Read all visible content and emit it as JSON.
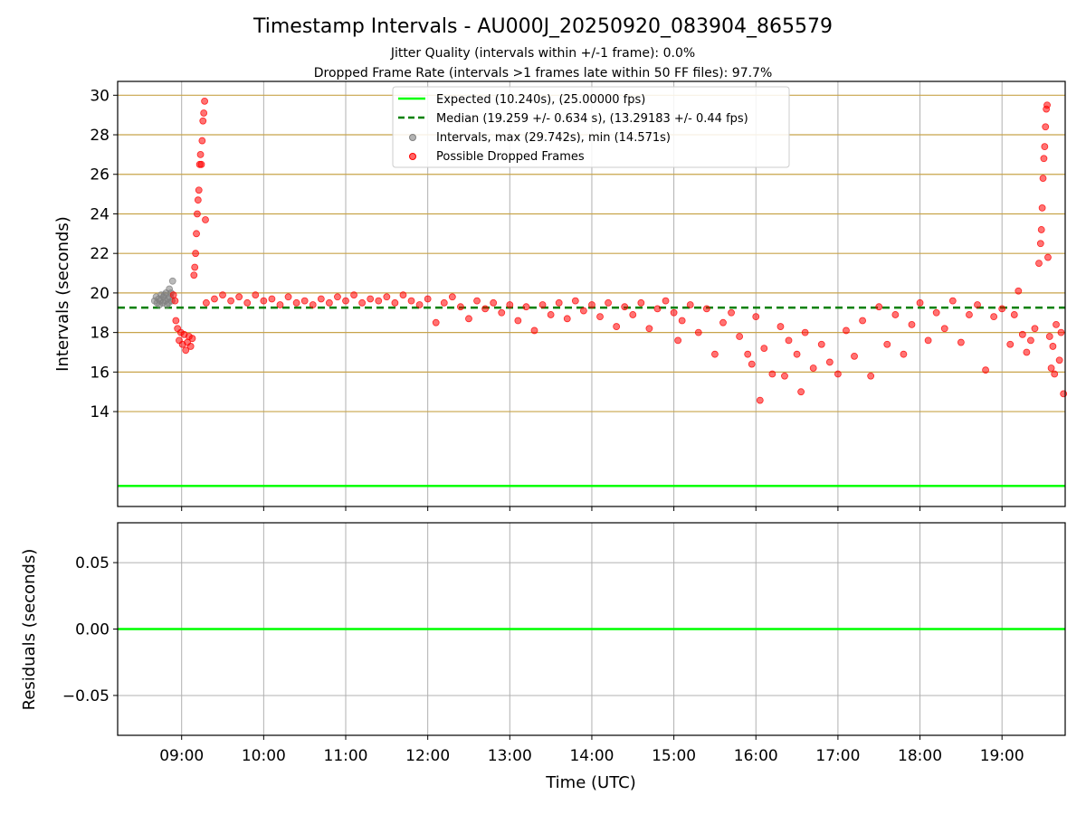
{
  "chart_data": {
    "type": "scatter",
    "title": "Timestamp Intervals - AU000J_20250920_083904_865579",
    "subtitles": [
      "Jitter Quality (intervals within +/-1 frame): 0.0%",
      "Dropped Frame Rate (intervals >1 frames late within 50 FF files): 97.7%"
    ],
    "colors": {
      "expected": "#00ff00",
      "median": "#008000",
      "intervals": "#808080",
      "dropped": "#ff0000",
      "gold_grid": "#c8a44a",
      "gray_grid": "#b0b0b0"
    },
    "x_axis": {
      "label": "Time (UTC)",
      "range_hours": [
        8.22,
        19.77
      ],
      "ticks": [
        {
          "value": 9,
          "label": "09:00"
        },
        {
          "value": 10,
          "label": "10:00"
        },
        {
          "value": 11,
          "label": "11:00"
        },
        {
          "value": 12,
          "label": "12:00"
        },
        {
          "value": 13,
          "label": "13:00"
        },
        {
          "value": 14,
          "label": "14:00"
        },
        {
          "value": 15,
          "label": "15:00"
        },
        {
          "value": 16,
          "label": "16:00"
        },
        {
          "value": 17,
          "label": "17:00"
        },
        {
          "value": 18,
          "label": "18:00"
        },
        {
          "value": 19,
          "label": "19:00"
        }
      ]
    },
    "top_panel": {
      "ylabel": "Intervals (seconds)",
      "ylim": [
        9.2,
        30.7
      ],
      "yticks": [
        {
          "value": 14,
          "label": "14"
        },
        {
          "value": 16,
          "label": "16"
        },
        {
          "value": 18,
          "label": "18"
        },
        {
          "value": 20,
          "label": "20"
        },
        {
          "value": 22,
          "label": "22"
        },
        {
          "value": 24,
          "label": "24"
        },
        {
          "value": 26,
          "label": "26"
        },
        {
          "value": 28,
          "label": "28"
        },
        {
          "value": 30,
          "label": "30"
        }
      ],
      "expected_value": 10.24,
      "median_value": 19.259,
      "legend": [
        {
          "label": "Expected (10.240s), (25.00000 fps)",
          "kind": "line",
          "color": "#00ff00"
        },
        {
          "label": "Median (19.259 +/- 0.634 s), (13.29183 +/- 0.44 fps)",
          "kind": "dashed",
          "color": "#008000"
        },
        {
          "label": "Intervals, max (29.742s), min (14.571s)",
          "kind": "marker",
          "color": "#808080"
        },
        {
          "label": "Possible Dropped Frames",
          "kind": "marker",
          "color": "#ff0000"
        }
      ],
      "interval_points_gray": [
        {
          "x": 8.67,
          "y": 19.6
        },
        {
          "x": 8.69,
          "y": 19.8
        },
        {
          "x": 8.7,
          "y": 19.5
        },
        {
          "x": 8.72,
          "y": 19.7
        },
        {
          "x": 8.74,
          "y": 19.6
        },
        {
          "x": 8.75,
          "y": 19.9
        },
        {
          "x": 8.77,
          "y": 19.5
        },
        {
          "x": 8.78,
          "y": 19.8
        },
        {
          "x": 8.8,
          "y": 19.6
        },
        {
          "x": 8.81,
          "y": 20.0
        },
        {
          "x": 8.83,
          "y": 19.7
        },
        {
          "x": 8.84,
          "y": 19.5
        },
        {
          "x": 8.85,
          "y": 20.2
        },
        {
          "x": 8.86,
          "y": 19.8
        },
        {
          "x": 8.88,
          "y": 19.6
        },
        {
          "x": 8.89,
          "y": 20.6
        },
        {
          "x": 8.73,
          "y": 19.4
        },
        {
          "x": 8.79,
          "y": 19.9
        },
        {
          "x": 8.82,
          "y": 19.4
        },
        {
          "x": 8.87,
          "y": 20.0
        }
      ],
      "dropped_frames": [
        {
          "x": 8.9,
          "y": 19.9
        },
        {
          "x": 8.92,
          "y": 19.6
        },
        {
          "x": 8.93,
          "y": 18.6
        },
        {
          "x": 8.95,
          "y": 18.2
        },
        {
          "x": 8.97,
          "y": 17.6
        },
        {
          "x": 8.99,
          "y": 18.0
        },
        {
          "x": 9.01,
          "y": 17.4
        },
        {
          "x": 9.03,
          "y": 17.9
        },
        {
          "x": 9.05,
          "y": 17.1
        },
        {
          "x": 9.07,
          "y": 17.5
        },
        {
          "x": 9.09,
          "y": 17.8
        },
        {
          "x": 9.11,
          "y": 17.3
        },
        {
          "x": 9.13,
          "y": 17.7
        },
        {
          "x": 9.15,
          "y": 20.9
        },
        {
          "x": 9.16,
          "y": 21.3
        },
        {
          "x": 9.17,
          "y": 22.0
        },
        {
          "x": 9.18,
          "y": 23.0
        },
        {
          "x": 9.19,
          "y": 24.0
        },
        {
          "x": 9.2,
          "y": 24.7
        },
        {
          "x": 9.21,
          "y": 25.2
        },
        {
          "x": 9.22,
          "y": 26.5
        },
        {
          "x": 9.23,
          "y": 27.0
        },
        {
          "x": 9.24,
          "y": 26.5
        },
        {
          "x": 9.25,
          "y": 27.7
        },
        {
          "x": 9.26,
          "y": 28.7
        },
        {
          "x": 9.27,
          "y": 29.1
        },
        {
          "x": 9.28,
          "y": 29.7
        },
        {
          "x": 9.29,
          "y": 23.7
        },
        {
          "x": 9.3,
          "y": 19.5
        },
        {
          "x": 9.4,
          "y": 19.7
        },
        {
          "x": 9.5,
          "y": 19.9
        },
        {
          "x": 9.6,
          "y": 19.6
        },
        {
          "x": 9.7,
          "y": 19.8
        },
        {
          "x": 9.8,
          "y": 19.5
        },
        {
          "x": 9.9,
          "y": 19.9
        },
        {
          "x": 10.0,
          "y": 19.6
        },
        {
          "x": 10.1,
          "y": 19.7
        },
        {
          "x": 10.2,
          "y": 19.4
        },
        {
          "x": 10.3,
          "y": 19.8
        },
        {
          "x": 10.4,
          "y": 19.5
        },
        {
          "x": 10.5,
          "y": 19.6
        },
        {
          "x": 10.6,
          "y": 19.4
        },
        {
          "x": 10.7,
          "y": 19.7
        },
        {
          "x": 10.8,
          "y": 19.5
        },
        {
          "x": 10.9,
          "y": 19.8
        },
        {
          "x": 11.0,
          "y": 19.6
        },
        {
          "x": 11.1,
          "y": 19.9
        },
        {
          "x": 11.2,
          "y": 19.5
        },
        {
          "x": 11.3,
          "y": 19.7
        },
        {
          "x": 11.4,
          "y": 19.6
        },
        {
          "x": 11.5,
          "y": 19.8
        },
        {
          "x": 11.6,
          "y": 19.5
        },
        {
          "x": 11.7,
          "y": 19.9
        },
        {
          "x": 11.8,
          "y": 19.6
        },
        {
          "x": 11.9,
          "y": 19.4
        },
        {
          "x": 12.0,
          "y": 19.7
        },
        {
          "x": 12.1,
          "y": 18.5
        },
        {
          "x": 12.2,
          "y": 19.5
        },
        {
          "x": 12.3,
          "y": 19.8
        },
        {
          "x": 12.4,
          "y": 19.3
        },
        {
          "x": 12.5,
          "y": 18.7
        },
        {
          "x": 12.6,
          "y": 19.6
        },
        {
          "x": 12.7,
          "y": 19.2
        },
        {
          "x": 12.8,
          "y": 19.5
        },
        {
          "x": 12.9,
          "y": 19.0
        },
        {
          "x": 13.0,
          "y": 19.4
        },
        {
          "x": 13.1,
          "y": 18.6
        },
        {
          "x": 13.2,
          "y": 19.3
        },
        {
          "x": 13.3,
          "y": 18.1
        },
        {
          "x": 13.4,
          "y": 19.4
        },
        {
          "x": 13.5,
          "y": 18.9
        },
        {
          "x": 13.6,
          "y": 19.5
        },
        {
          "x": 13.7,
          "y": 18.7
        },
        {
          "x": 13.8,
          "y": 19.6
        },
        {
          "x": 13.9,
          "y": 19.1
        },
        {
          "x": 14.0,
          "y": 19.4
        },
        {
          "x": 14.1,
          "y": 18.8
        },
        {
          "x": 14.2,
          "y": 19.5
        },
        {
          "x": 14.3,
          "y": 18.3
        },
        {
          "x": 14.4,
          "y": 19.3
        },
        {
          "x": 14.5,
          "y": 18.9
        },
        {
          "x": 14.6,
          "y": 19.5
        },
        {
          "x": 14.7,
          "y": 18.2
        },
        {
          "x": 14.8,
          "y": 19.2
        },
        {
          "x": 14.9,
          "y": 19.6
        },
        {
          "x": 15.0,
          "y": 19.0
        },
        {
          "x": 15.05,
          "y": 17.6
        },
        {
          "x": 15.1,
          "y": 18.6
        },
        {
          "x": 15.2,
          "y": 19.4
        },
        {
          "x": 15.3,
          "y": 18.0
        },
        {
          "x": 15.4,
          "y": 19.2
        },
        {
          "x": 15.5,
          "y": 16.9
        },
        {
          "x": 15.6,
          "y": 18.5
        },
        {
          "x": 15.7,
          "y": 19.0
        },
        {
          "x": 15.8,
          "y": 17.8
        },
        {
          "x": 15.9,
          "y": 16.9
        },
        {
          "x": 15.95,
          "y": 16.4
        },
        {
          "x": 16.0,
          "y": 18.8
        },
        {
          "x": 16.05,
          "y": 14.57
        },
        {
          "x": 16.1,
          "y": 17.2
        },
        {
          "x": 16.2,
          "y": 15.9
        },
        {
          "x": 16.3,
          "y": 18.3
        },
        {
          "x": 16.35,
          "y": 15.8
        },
        {
          "x": 16.4,
          "y": 17.6
        },
        {
          "x": 16.5,
          "y": 16.9
        },
        {
          "x": 16.55,
          "y": 15.0
        },
        {
          "x": 16.6,
          "y": 18.0
        },
        {
          "x": 16.7,
          "y": 16.2
        },
        {
          "x": 16.8,
          "y": 17.4
        },
        {
          "x": 16.9,
          "y": 16.5
        },
        {
          "x": 17.0,
          "y": 15.9
        },
        {
          "x": 17.1,
          "y": 18.1
        },
        {
          "x": 17.2,
          "y": 16.8
        },
        {
          "x": 17.3,
          "y": 18.6
        },
        {
          "x": 17.4,
          "y": 15.8
        },
        {
          "x": 17.5,
          "y": 19.3
        },
        {
          "x": 17.6,
          "y": 17.4
        },
        {
          "x": 17.7,
          "y": 18.9
        },
        {
          "x": 17.8,
          "y": 16.9
        },
        {
          "x": 17.9,
          "y": 18.4
        },
        {
          "x": 18.0,
          "y": 19.5
        },
        {
          "x": 18.1,
          "y": 17.6
        },
        {
          "x": 18.2,
          "y": 19.0
        },
        {
          "x": 18.3,
          "y": 18.2
        },
        {
          "x": 18.4,
          "y": 19.6
        },
        {
          "x": 18.5,
          "y": 17.5
        },
        {
          "x": 18.6,
          "y": 18.9
        },
        {
          "x": 18.7,
          "y": 19.4
        },
        {
          "x": 18.8,
          "y": 16.1
        },
        {
          "x": 18.9,
          "y": 18.8
        },
        {
          "x": 19.0,
          "y": 19.2
        },
        {
          "x": 19.1,
          "y": 17.4
        },
        {
          "x": 19.15,
          "y": 18.9
        },
        {
          "x": 19.2,
          "y": 20.1
        },
        {
          "x": 19.25,
          "y": 17.9
        },
        {
          "x": 19.3,
          "y": 17.0
        },
        {
          "x": 19.35,
          "y": 17.6
        },
        {
          "x": 19.4,
          "y": 18.2
        },
        {
          "x": 19.45,
          "y": 21.5
        },
        {
          "x": 19.47,
          "y": 22.5
        },
        {
          "x": 19.48,
          "y": 23.2
        },
        {
          "x": 19.49,
          "y": 24.3
        },
        {
          "x": 19.5,
          "y": 25.8
        },
        {
          "x": 19.51,
          "y": 26.8
        },
        {
          "x": 19.52,
          "y": 27.4
        },
        {
          "x": 19.53,
          "y": 28.4
        },
        {
          "x": 19.54,
          "y": 29.3
        },
        {
          "x": 19.55,
          "y": 29.5
        },
        {
          "x": 19.56,
          "y": 21.8
        },
        {
          "x": 19.58,
          "y": 17.8
        },
        {
          "x": 19.6,
          "y": 16.2
        },
        {
          "x": 19.62,
          "y": 17.3
        },
        {
          "x": 19.64,
          "y": 15.9
        },
        {
          "x": 19.66,
          "y": 18.4
        },
        {
          "x": 19.7,
          "y": 16.6
        },
        {
          "x": 19.72,
          "y": 18.0
        },
        {
          "x": 19.75,
          "y": 14.9
        }
      ]
    },
    "bottom_panel": {
      "ylabel": "Residuals (seconds)",
      "ylim": [
        -0.08,
        0.08
      ],
      "yticks": [
        {
          "value": 0.05,
          "label": "0.05"
        },
        {
          "value": 0.0,
          "label": "0.00"
        },
        {
          "value": -0.05,
          "label": "−0.05"
        }
      ],
      "residual_line_value": 0.0
    }
  }
}
